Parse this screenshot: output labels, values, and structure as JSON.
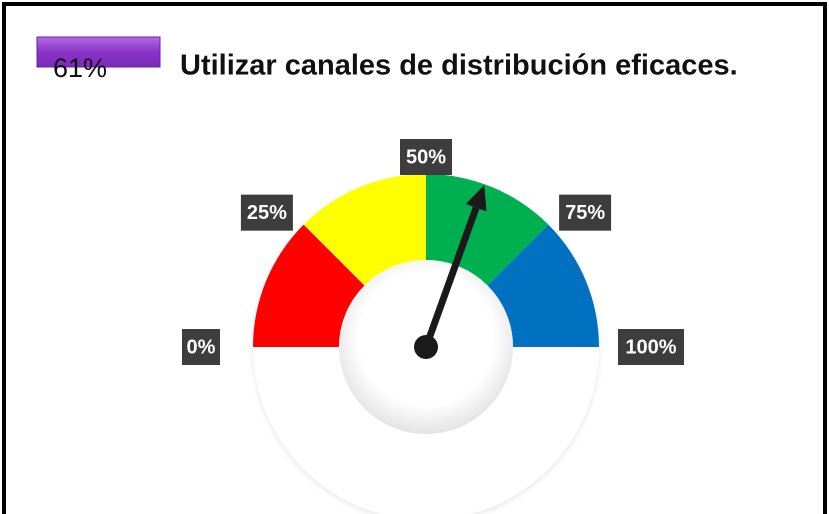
{
  "chart_data": {
    "type": "gauge",
    "title": "Utilizar  canales de distribución eficaces.",
    "value": 61,
    "value_label": "61%",
    "range": [
      0,
      100
    ],
    "ticks": [
      {
        "value": 0,
        "label": "0%"
      },
      {
        "value": 25,
        "label": "25%"
      },
      {
        "value": 50,
        "label": "50%"
      },
      {
        "value": 75,
        "label": "75%"
      },
      {
        "value": 100,
        "label": "100%"
      }
    ],
    "bands": [
      {
        "range": [
          0,
          25
        ],
        "color": "#ff0000"
      },
      {
        "range": [
          25,
          50
        ],
        "color": "#ffff00"
      },
      {
        "range": [
          50,
          75
        ],
        "color": "#00b050"
      },
      {
        "range": [
          75,
          100
        ],
        "color": "#0070c0"
      }
    ],
    "needle_color": "#1a1a1a"
  }
}
